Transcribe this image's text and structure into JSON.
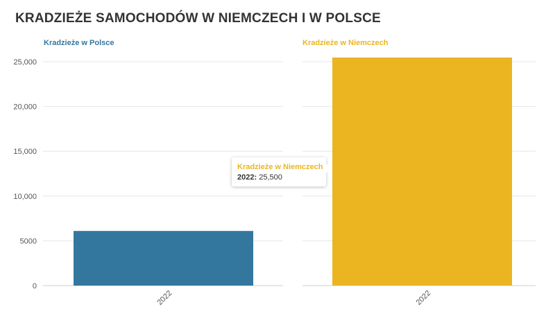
{
  "title": "KRADZIEŻE SAMOCHODÓW W NIEMCZECH I W POLSCE",
  "colors": {
    "polska": "#33779f",
    "niemcy": "#ebb521"
  },
  "chart_data": [
    {
      "type": "bar",
      "title": "Kradzieże w Polsce",
      "categories": [
        "2022"
      ],
      "series": [
        {
          "name": "Kradzieże w Polsce",
          "values": [
            6100
          ]
        }
      ],
      "ylim": [
        0,
        25000
      ],
      "yticks": [
        "0",
        "5000",
        "10,000",
        "15,000",
        "20,000",
        "25,000"
      ],
      "grid": true
    },
    {
      "type": "bar",
      "title": "Kradzieże w Niemczech",
      "categories": [
        "2022"
      ],
      "series": [
        {
          "name": "Kradzieże w Niemczech",
          "values": [
            25500
          ]
        }
      ],
      "ylim": [
        0,
        25000
      ],
      "grid": true
    }
  ],
  "tooltip": {
    "series": "Kradzieże w Niemczech",
    "category": "2022:",
    "value": "25,500"
  }
}
